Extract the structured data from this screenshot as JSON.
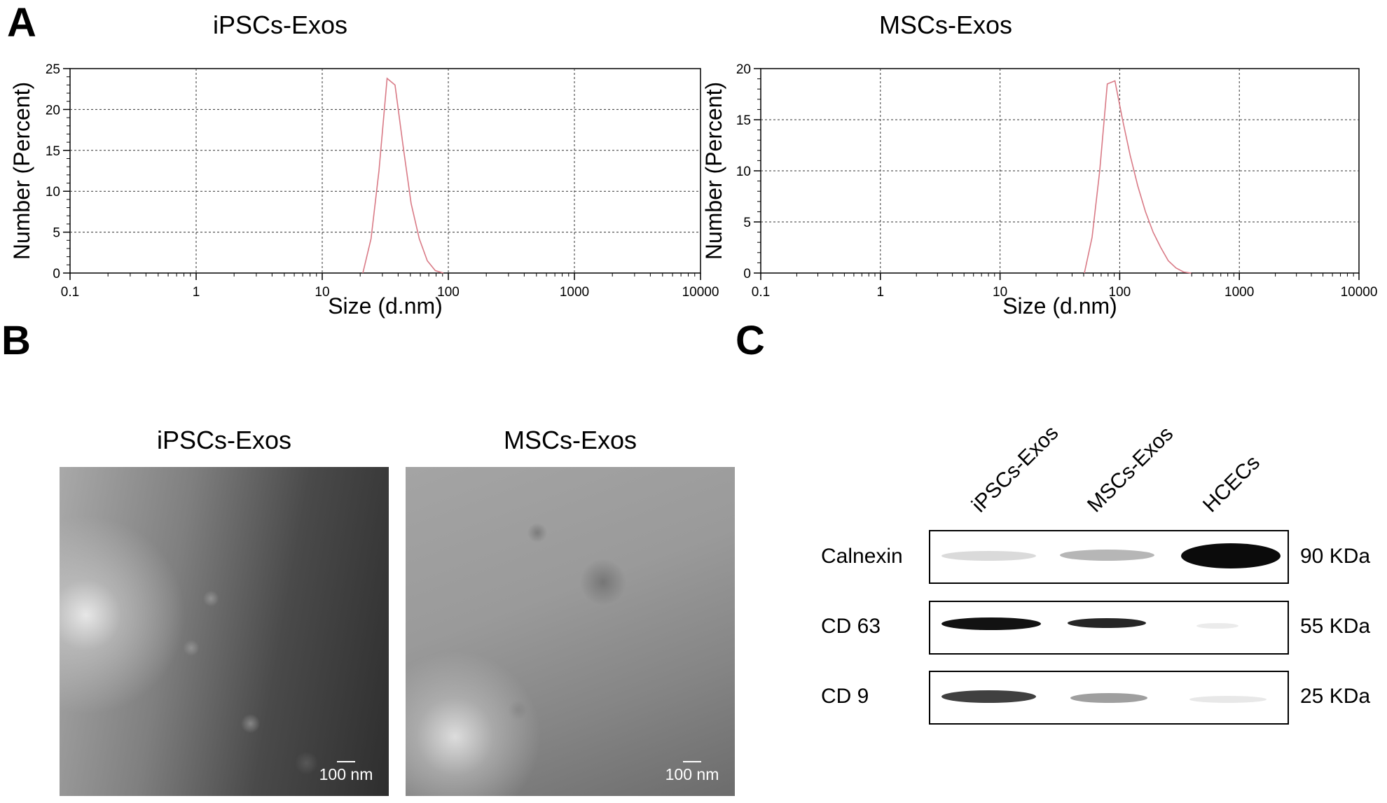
{
  "panels": {
    "a": "A",
    "b": "B",
    "c": "C"
  },
  "chart_data": [
    {
      "type": "line",
      "title": "iPSCs-Exos",
      "xlabel": "Size (d.nm)",
      "ylabel": "Number (Percent)",
      "x_scale": "log",
      "xlim": [
        0.1,
        10000
      ],
      "ylim": [
        0,
        25
      ],
      "xticks": [
        "0.1",
        "1",
        "10",
        "100",
        "1000",
        "10000"
      ],
      "yticks": [
        "0",
        "5",
        "10",
        "15",
        "20",
        "25"
      ],
      "grid": true,
      "line_color": "#d97a86",
      "series": [
        {
          "x": [
            21,
            24.4,
            28.2,
            32.7,
            37.8,
            43.8,
            50.7,
            58.8,
            68.1,
            78.8,
            91.3
          ],
          "y": [
            0,
            4.2,
            12.5,
            23.8,
            23.0,
            15.5,
            8.5,
            4.2,
            1.5,
            0.3,
            0
          ]
        }
      ]
    },
    {
      "type": "line",
      "title": "MSCs-Exos",
      "xlabel": "Size (d.nm)",
      "ylabel": "Number (Percent)",
      "x_scale": "log",
      "xlim": [
        0.1,
        10000
      ],
      "ylim": [
        0,
        20
      ],
      "xticks": [
        "0.1",
        "1",
        "10",
        "100",
        "1000",
        "10000"
      ],
      "yticks": [
        "0",
        "5",
        "10",
        "15",
        "20"
      ],
      "grid": true,
      "line_color": "#d97a86",
      "series": [
        {
          "x": [
            50.7,
            58.8,
            68.1,
            78.8,
            91.3,
            105.7,
            122.4,
            141.8,
            164.2,
            190.1,
            220.2,
            255.0,
            295.3,
            342.0,
            396.1
          ],
          "y": [
            0,
            3.5,
            10.0,
            18.5,
            18.8,
            15.0,
            11.5,
            8.5,
            6.0,
            4.0,
            2.5,
            1.2,
            0.5,
            0.1,
            0
          ]
        }
      ]
    }
  ],
  "tem": {
    "left": {
      "title": "iPSCs-Exos",
      "scale": "100 nm"
    },
    "right": {
      "title": "MSCs-Exos",
      "scale": "100 nm"
    }
  },
  "western_blot": {
    "lanes": [
      "iPSCs-Exos",
      "MSCs-Exos",
      "HCECs"
    ],
    "rows": [
      {
        "label": "Calnexin",
        "kda": "90 KDa"
      },
      {
        "label": "CD 63",
        "kda": "55 KDa"
      },
      {
        "label": "CD 9",
        "kda": "25 KDa"
      }
    ]
  }
}
